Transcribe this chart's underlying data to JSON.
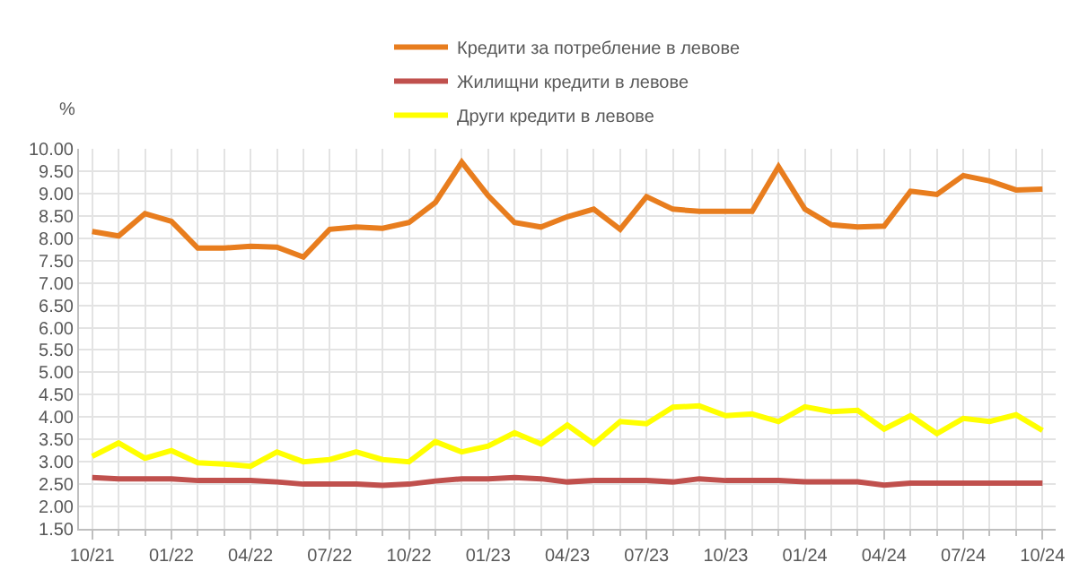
{
  "chart_data": {
    "type": "line",
    "ylabel": "%",
    "categories": [
      "10/21",
      null,
      null,
      "01/22",
      null,
      null,
      "04/22",
      null,
      null,
      "07/22",
      null,
      null,
      "10/22",
      null,
      null,
      "01/23",
      null,
      null,
      "04/23",
      null,
      null,
      "07/23",
      null,
      null,
      "10/23",
      null,
      null,
      "01/24",
      null,
      null,
      "04/24",
      null,
      null,
      "07/24",
      null,
      null,
      "10/24"
    ],
    "series": [
      {
        "name": "Кредити за потребление в левове",
        "color": "#e87d1e",
        "values": [
          8.15,
          8.05,
          8.55,
          8.38,
          7.78,
          7.78,
          7.82,
          7.8,
          7.58,
          8.2,
          8.25,
          8.22,
          8.35,
          8.8,
          9.7,
          8.95,
          8.35,
          8.25,
          8.48,
          8.65,
          8.2,
          8.93,
          8.65,
          8.6,
          8.6,
          8.6,
          9.6,
          8.65,
          8.3,
          8.25,
          8.27,
          9.05,
          8.98,
          9.4,
          9.28,
          9.08,
          9.1
        ]
      },
      {
        "name": "Жилищни кредити в левове",
        "color": "#c0504d",
        "values": [
          2.65,
          2.62,
          2.62,
          2.62,
          2.58,
          2.58,
          2.58,
          2.55,
          2.5,
          2.5,
          2.5,
          2.47,
          2.5,
          2.57,
          2.62,
          2.62,
          2.65,
          2.62,
          2.55,
          2.58,
          2.58,
          2.58,
          2.55,
          2.62,
          2.58,
          2.58,
          2.58,
          2.55,
          2.55,
          2.55,
          2.48,
          2.52,
          2.52,
          2.52,
          2.52,
          2.52,
          2.52
        ]
      },
      {
        "name": "Други кредити в левове",
        "color": "#ffff00",
        "values": [
          3.12,
          3.42,
          3.08,
          3.25,
          2.98,
          2.95,
          2.9,
          3.22,
          3.0,
          3.05,
          3.22,
          3.05,
          3.0,
          3.45,
          3.22,
          3.35,
          3.65,
          3.4,
          3.82,
          3.4,
          3.9,
          3.85,
          4.22,
          4.25,
          4.03,
          4.07,
          3.9,
          4.23,
          4.12,
          4.15,
          3.73,
          4.03,
          3.63,
          3.97,
          3.9,
          4.05,
          3.7
        ]
      }
    ],
    "ylim": [
      1.5,
      10.0
    ],
    "yticks": [
      {
        "value": 1.5,
        "label": "1.50"
      },
      {
        "value": 2.0,
        "label": "2.00"
      },
      {
        "value": 2.5,
        "label": "2.50"
      },
      {
        "value": 3.0,
        "label": "3.00"
      },
      {
        "value": 3.5,
        "label": "3.50"
      },
      {
        "value": 4.0,
        "label": "4.00"
      },
      {
        "value": 4.5,
        "label": "4.50"
      },
      {
        "value": 5.0,
        "label": "5.00"
      },
      {
        "value": 5.5,
        "label": "5.50"
      },
      {
        "value": 6.0,
        "label": "6.00"
      },
      {
        "value": 6.5,
        "label": "6.50"
      },
      {
        "value": 7.0,
        "label": "7.00"
      },
      {
        "value": 7.5,
        "label": "7.50"
      },
      {
        "value": 8.0,
        "label": "8.00"
      },
      {
        "value": 8.5,
        "label": "8.50"
      },
      {
        "value": 9.0,
        "label": "9.00"
      },
      {
        "value": 9.5,
        "label": "9.50"
      },
      {
        "value": 10.0,
        "label": "10.00"
      }
    ],
    "grid": true,
    "legend": "top",
    "marker": "none",
    "line_style": "solid"
  }
}
